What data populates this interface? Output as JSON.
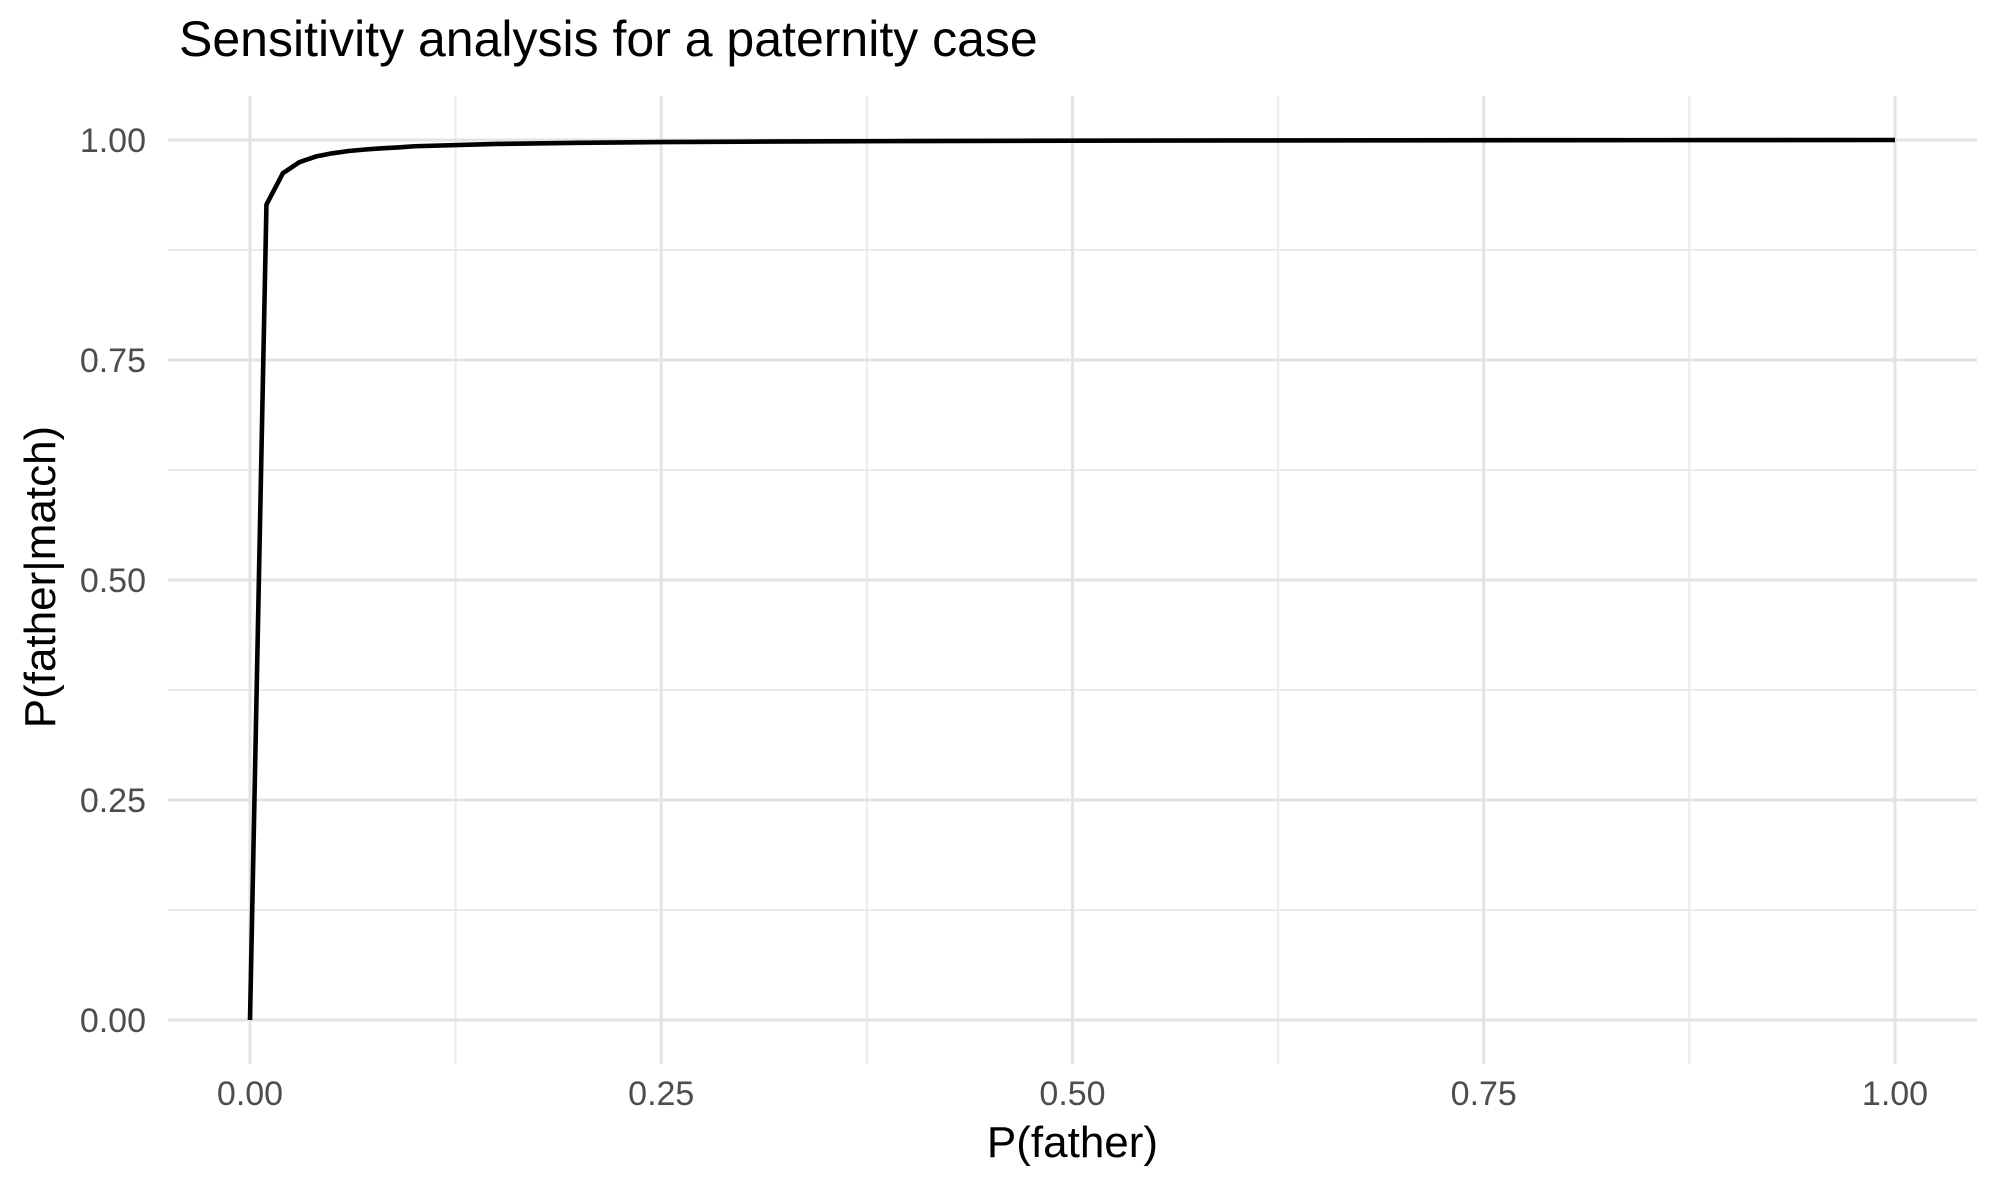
{
  "chart": {
    "title": "Sensitivity analysis for a paternity case",
    "xlabel": "P(father)",
    "ylabel": "P(father|match)"
  },
  "chart_data": {
    "type": "line",
    "title": "Sensitivity analysis for a paternity case",
    "xlabel": "P(father)",
    "ylabel": "P(father|match)",
    "xlim": [
      0,
      1
    ],
    "ylim": [
      0,
      1
    ],
    "grid": "major+minor",
    "legend_position": "none",
    "theme": "minimal-white",
    "x_ticks": {
      "values": [
        0,
        0.25,
        0.5,
        0.75,
        1.0
      ],
      "labels": [
        "0.00",
        "0.25",
        "0.50",
        "0.75",
        "1.00"
      ]
    },
    "y_ticks": {
      "values": [
        0,
        0.25,
        0.5,
        0.75,
        1.0
      ],
      "labels": [
        "0.00",
        "0.25",
        "0.50",
        "0.75",
        "1.00"
      ]
    },
    "x_minor_ticks": [
      0.125,
      0.375,
      0.625,
      0.875
    ],
    "y_minor_ticks": [
      0.125,
      0.375,
      0.625,
      0.875
    ],
    "series": [
      {
        "name": "posterior-probability-curve",
        "x": [
          0,
          0.01,
          0.02,
          0.03,
          0.04,
          0.05,
          0.06,
          0.07,
          0.08,
          0.09,
          0.1,
          0.15,
          0.2,
          0.25,
          0.3,
          0.35,
          0.4,
          0.5,
          0.6,
          0.7,
          0.8,
          0.9,
          1.0
        ],
        "y": [
          0,
          0.9266,
          0.9623,
          0.9748,
          0.9812,
          0.9849,
          0.9875,
          0.9892,
          0.9906,
          0.9916,
          0.9929,
          0.9955,
          0.9968,
          0.9976,
          0.9981,
          0.9985,
          0.9988,
          0.9992,
          0.9995,
          0.9997,
          0.9998,
          0.9999,
          1.0
        ]
      }
    ],
    "colors": {
      "background": "#ffffff",
      "line": "#000000",
      "grid_major": "#e3e3e3",
      "grid_minor": "#ebebeb",
      "tick_label": "#4d4d4d",
      "title_text": "#000000"
    }
  }
}
